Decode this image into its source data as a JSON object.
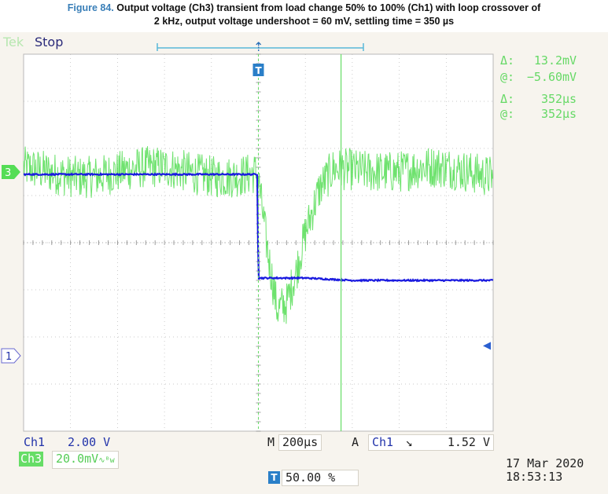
{
  "caption": {
    "figure_label": "Figure 84.",
    "line1": "Output voltage (Ch3) transient from load change 50% to 100% (Ch1) with loop crossover of",
    "line2": "2 kHz, output voltage undershoot = 60 mV, settling time = 350 µs"
  },
  "scope": {
    "brand": "Tek",
    "run_state": "Stop",
    "cursor_readouts": [
      {
        "symbol": "Δ:",
        "value": "13.2mV"
      },
      {
        "symbol": "@:",
        "value": "−5.60mV"
      },
      {
        "symbol": "Δ:",
        "value": "352µs"
      },
      {
        "symbol": "@:",
        "value": "352µs"
      }
    ],
    "channel_markers": {
      "ch3": "3",
      "ch1": "1"
    },
    "trigger_marker": "T",
    "ch1_scale_label": "Ch1",
    "ch1_scale_value": "2.00 V",
    "ch3_scale_label": "Ch3",
    "ch3_scale_value": "20.0mV",
    "ch3_bw_symbol": "∿ᴮw",
    "timebase_label": "M",
    "timebase_value": "200µs",
    "trigger_mode": "A",
    "trigger_source": "Ch1",
    "trigger_slope_symbol": "↘",
    "trigger_level": "1.52 V",
    "trigger_position": "50.00 %",
    "date": "17 Mar  2020",
    "time": "18:53:13",
    "colors": {
      "ch3": "#55dd55",
      "ch1": "#1a1adf",
      "grid": "#b8b8b8",
      "background": "#f7f4ee",
      "cursor": "#66dd66"
    }
  },
  "chart_data": {
    "type": "line",
    "title": "",
    "xlabel": "",
    "ylabel": "",
    "x_unit": "µs",
    "x_div": 200,
    "x_range": [
      -1000,
      1000
    ],
    "grid": true,
    "series": [
      {
        "name": "Ch3",
        "unit": "mV",
        "volts_per_div": 20,
        "x": [
          -1000,
          -800,
          -600,
          -400,
          -200,
          -10,
          0,
          40,
          80,
          120,
          160,
          200,
          260,
          320,
          400,
          500,
          600,
          800,
          1000
        ],
        "y": [
          0,
          0,
          0,
          0,
          0,
          0,
          -3,
          -35,
          -60,
          -58,
          -45,
          -28,
          -8,
          2,
          3,
          2,
          0,
          0,
          0
        ]
      },
      {
        "name": "Ch1",
        "unit": "V",
        "volts_per_div": 2,
        "x": [
          -1000,
          -800,
          -600,
          -400,
          -200,
          -5,
          0,
          5,
          200,
          400,
          600,
          800,
          1000
        ],
        "y": [
          8.8,
          8.8,
          8.8,
          8.8,
          8.8,
          8.8,
          4.4,
          4.4,
          4.4,
          4.3,
          4.3,
          4.3,
          4.3
        ]
      }
    ],
    "cursors": {
      "delta_v": "13.2mV",
      "at_v": "−5.60mV",
      "delta_t": "352µs",
      "at_t": "352µs"
    }
  }
}
